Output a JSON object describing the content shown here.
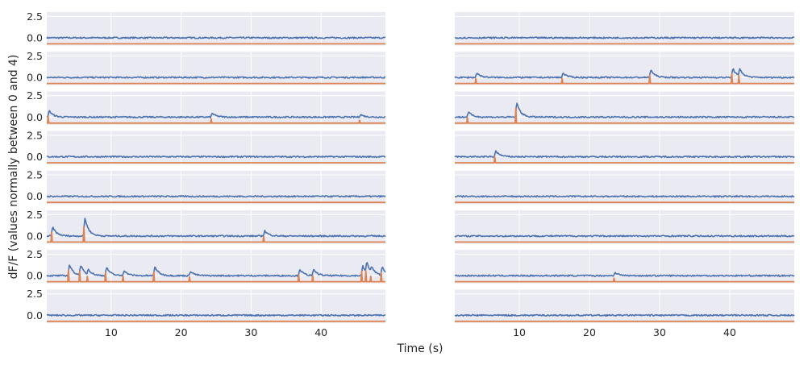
{
  "chart_data": {
    "type": "line",
    "xlabel": "Time (s)",
    "ylabel": "dF/F (values normally between 0 and 4)",
    "xlim": [
      0.8,
      49.2
    ],
    "ylim": [
      -0.9,
      3.0
    ],
    "x_ticks": [
      10,
      20,
      30,
      40
    ],
    "x_tick_labels": [
      "10",
      "20",
      "30",
      "40"
    ],
    "y_ticks": [
      0.0,
      2.5
    ],
    "y_tick_labels": [
      "0.0",
      "2.5"
    ],
    "grid": true,
    "colors": {
      "trace": "#4c72b0",
      "events": "#dd8452",
      "panel_bg": "#eaeaf2",
      "grid": "#ffffff"
    },
    "trace_baseline": 0.0,
    "event_baseline": -0.7,
    "panel_columns": [
      {
        "rows": [
          {
            "events": []
          },
          {
            "events": []
          },
          {
            "events": [
              {
                "t": 1.0,
                "amp": 1.0
              },
              {
                "t": 24.3,
                "amp": 0.6
              },
              {
                "t": 45.5,
                "amp": 0.4
              }
            ]
          },
          {
            "events": []
          },
          {
            "events": []
          },
          {
            "events": [
              {
                "t": 1.5,
                "amp": 1.4
              },
              {
                "t": 6.1,
                "amp": 2.8
              },
              {
                "t": 31.8,
                "amp": 0.8
              }
            ]
          },
          {
            "events": [
              {
                "t": 3.9,
                "amp": 1.7
              },
              {
                "t": 5.5,
                "amp": 1.5
              },
              {
                "t": 6.6,
                "amp": 0.8
              },
              {
                "t": 9.2,
                "amp": 1.3
              },
              {
                "t": 11.7,
                "amp": 0.8
              },
              {
                "t": 16.1,
                "amp": 1.4
              },
              {
                "t": 21.2,
                "amp": 0.7
              },
              {
                "t": 36.8,
                "amp": 1.0
              },
              {
                "t": 38.8,
                "amp": 0.9
              },
              {
                "t": 45.8,
                "amp": 1.5
              },
              {
                "t": 46.4,
                "amp": 1.6
              },
              {
                "t": 47.1,
                "amp": 0.8
              },
              {
                "t": 48.6,
                "amp": 1.3
              }
            ]
          },
          {
            "events": []
          }
        ]
      },
      {
        "rows": [
          {
            "events": []
          },
          {
            "events": [
              {
                "t": 3.8,
                "amp": 0.7
              },
              {
                "t": 16.1,
                "amp": 0.7
              },
              {
                "t": 28.6,
                "amp": 1.2
              },
              {
                "t": 40.3,
                "amp": 1.4
              },
              {
                "t": 41.3,
                "amp": 1.1
              }
            ]
          },
          {
            "events": [
              {
                "t": 2.6,
                "amp": 0.8
              },
              {
                "t": 9.5,
                "amp": 2.2
              }
            ]
          },
          {
            "events": [
              {
                "t": 6.5,
                "amp": 0.9
              }
            ]
          },
          {
            "events": []
          },
          {
            "events": []
          },
          {
            "events": [
              {
                "t": 23.5,
                "amp": 0.5
              }
            ]
          },
          {
            "events": []
          }
        ]
      }
    ]
  }
}
